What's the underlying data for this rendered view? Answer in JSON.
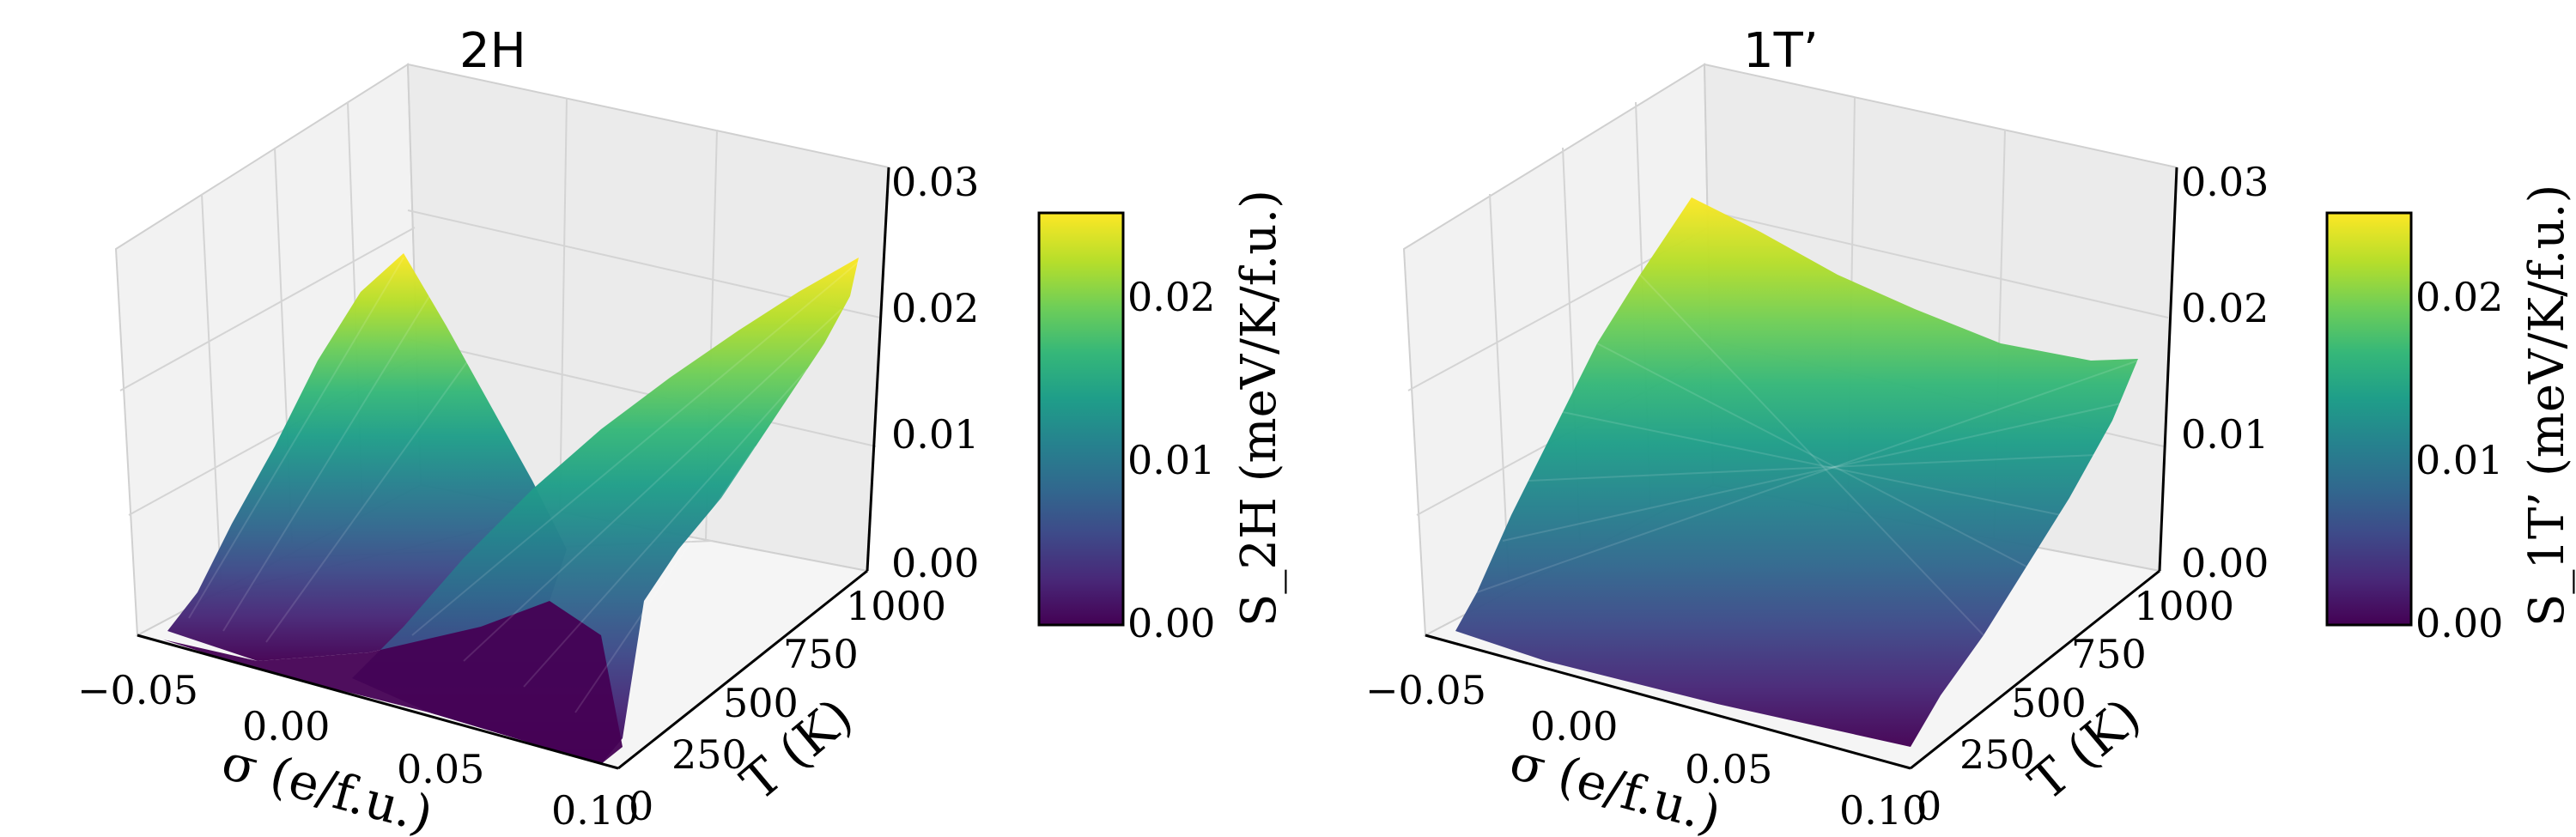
{
  "chart_data": [
    {
      "type": "surface",
      "title": "2H",
      "xlabel": "σ (e/f.u.)",
      "ylabel": "T (K)",
      "x_ticks": [
        "−0.05",
        "0.00",
        "0.05",
        "0.10"
      ],
      "y_ticks": [
        "0",
        "250",
        "500",
        "750",
        "1000"
      ],
      "z_ticks": [
        "0.00",
        "0.01",
        "0.02",
        "0.03"
      ],
      "x_range": [
        -0.06,
        0.1
      ],
      "y_range": [
        0,
        1000
      ],
      "z_range": [
        0,
        0.03
      ],
      "colorbar": {
        "label": "S_2H (meV/K/f.u.)",
        "ticks": [
          "0.00",
          "0.01",
          "0.02"
        ],
        "range": [
          0,
          0.025
        ],
        "colormap": "viridis"
      },
      "grid": true,
      "surface_description": "V-shaped entropy surface with minimum near σ≈0.00, increasing with T",
      "peak_values": {
        "sigma_min_edge": 0.019,
        "sigma_max_edge": 0.024
      }
    },
    {
      "type": "surface",
      "title": "1T’",
      "xlabel": "σ (e/f.u.)",
      "ylabel": "T (K)",
      "x_ticks": [
        "−0.05",
        "0.00",
        "0.05",
        "0.10"
      ],
      "y_ticks": [
        "0",
        "250",
        "500",
        "750",
        "1000"
      ],
      "z_ticks": [
        "0.00",
        "0.01",
        "0.02",
        "0.03"
      ],
      "x_range": [
        -0.06,
        0.1
      ],
      "y_range": [
        0,
        1000
      ],
      "z_range": [
        0,
        0.03
      ],
      "colorbar": {
        "label": "S_1T’ (meV/K/f.u.)",
        "ticks": [
          "0.00",
          "0.01",
          "0.02"
        ],
        "range": [
          0,
          0.025
        ],
        "colormap": "viridis"
      },
      "grid": true,
      "surface_description": "Smooth entropy surface decreasing slightly with σ, increasing with T",
      "peak_values": {
        "sigma_min_edge": 0.025,
        "sigma_max_edge": 0.018
      }
    }
  ],
  "colors": {
    "viridis": [
      "#440154",
      "#482878",
      "#3e4a89",
      "#31688e",
      "#26828e",
      "#1f9e89",
      "#35b779",
      "#6ece58",
      "#b5de2b",
      "#fde725"
    ],
    "pane_left": "#f2f2f2",
    "pane_back": "#ebebeb",
    "pane_floor": "#f5f5f5",
    "grid": "#d0d0d0"
  }
}
